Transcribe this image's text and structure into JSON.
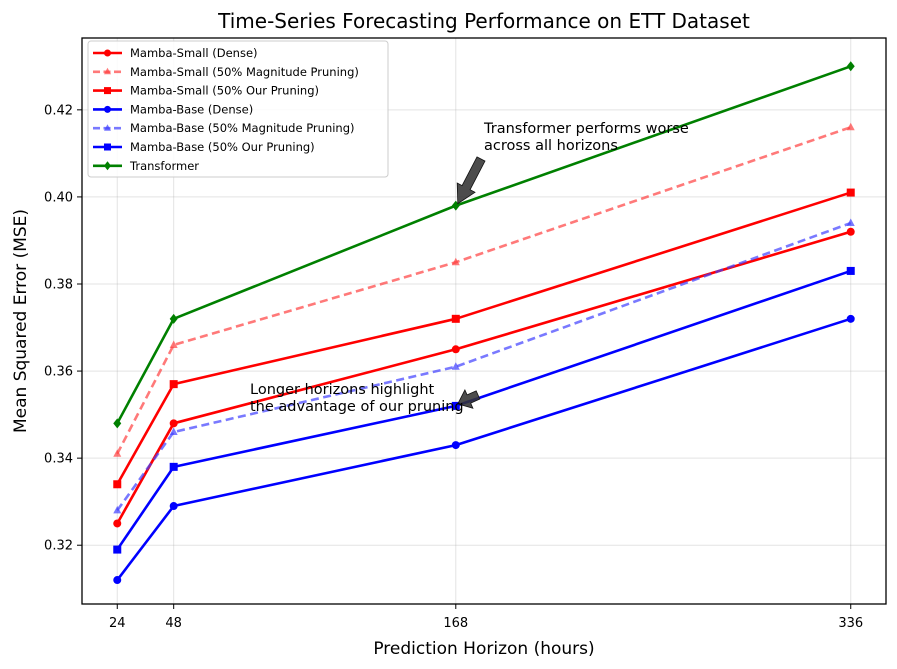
{
  "chart_data": {
    "type": "line",
    "title": "Time-Series Forecasting Performance on ETT Dataset",
    "xlabel": "Prediction Horizon (hours)",
    "ylabel": "Mean Squared Error (MSE)",
    "x": [
      24,
      48,
      168,
      336
    ],
    "xlim": [
      9,
      351
    ],
    "ylim": [
      0.3065,
      0.4365
    ],
    "yticks": [
      0.32,
      0.34,
      0.36,
      0.38,
      0.4,
      0.42
    ],
    "ytick_labels": [
      "0.32",
      "0.34",
      "0.36",
      "0.38",
      "0.40",
      "0.42"
    ],
    "xticks": [
      24,
      48,
      168,
      336
    ],
    "xtick_labels": [
      "24",
      "48",
      "168",
      "336"
    ],
    "grid": true,
    "legend_position": "top-left",
    "series": [
      {
        "name": "Mamba-Small (Dense)",
        "values": [
          0.325,
          0.348,
          0.365,
          0.392
        ],
        "color": "#ff0000",
        "style": "solid",
        "marker": "circle"
      },
      {
        "name": "Mamba-Small (50% Magnitude Pruning)",
        "values": [
          0.341,
          0.366,
          0.385,
          0.416
        ],
        "color": "#ff4040",
        "style": "dashed",
        "marker": "triangle"
      },
      {
        "name": "Mamba-Small (50% Our Pruning)",
        "values": [
          0.334,
          0.357,
          0.372,
          0.401
        ],
        "color": "#ff0000",
        "style": "solid",
        "marker": "square"
      },
      {
        "name": "Mamba-Base (Dense)",
        "values": [
          0.312,
          0.329,
          0.343,
          0.372
        ],
        "color": "#0000ff",
        "style": "solid",
        "marker": "circle"
      },
      {
        "name": "Mamba-Base (50% Magnitude Pruning)",
        "values": [
          0.328,
          0.346,
          0.361,
          0.394
        ],
        "color": "#4040ff",
        "style": "dashed",
        "marker": "triangle"
      },
      {
        "name": "Mamba-Base (50% Our Pruning)",
        "values": [
          0.319,
          0.338,
          0.352,
          0.383
        ],
        "color": "#0000ff",
        "style": "solid",
        "marker": "square"
      },
      {
        "name": "Transformer",
        "values": [
          0.348,
          0.372,
          0.398,
          0.43
        ],
        "color": "#008000",
        "style": "solid",
        "marker": "diamond"
      }
    ],
    "annotations": [
      {
        "text_lines": [
          "Transformer performs worse",
          "across all horizons"
        ],
        "target_x": 168,
        "target_y": 0.398
      },
      {
        "text_lines": [
          "Longer horizons highlight",
          "the advantage of our pruning"
        ],
        "target_x": 168,
        "target_y": 0.352
      }
    ]
  }
}
